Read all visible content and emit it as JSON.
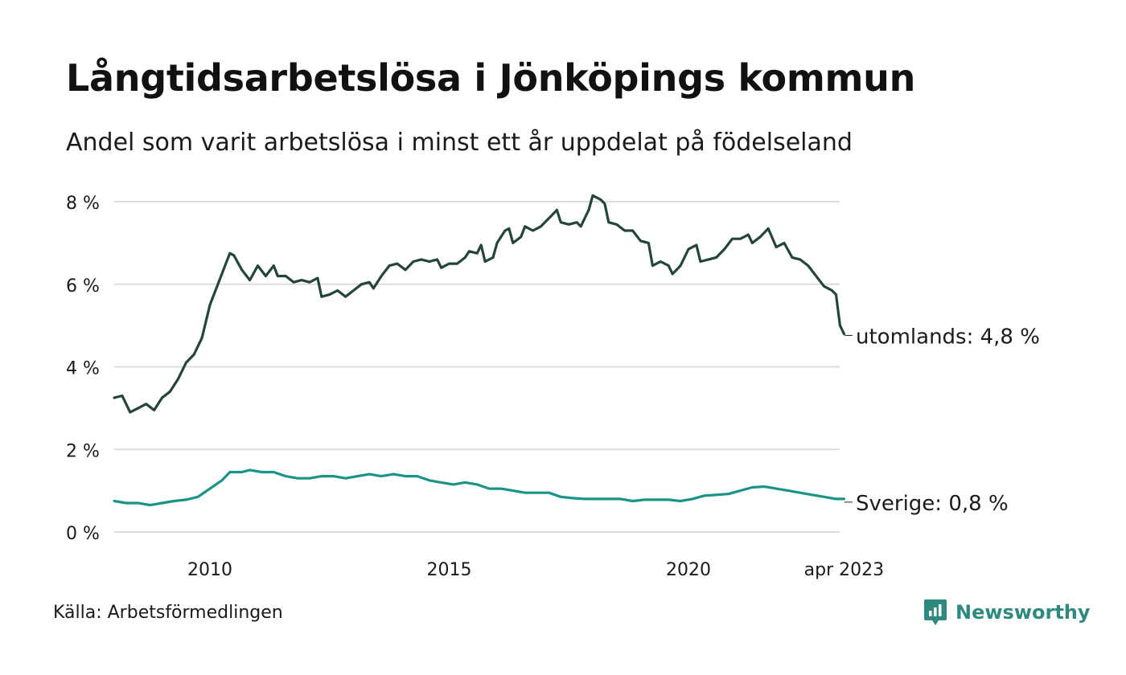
{
  "header": {
    "title": "Långtidsarbetslösa i Jönköpings kommun",
    "subtitle": "Andel som varit arbetslösa i minst ett år uppdelat på födelseland"
  },
  "footer": {
    "source": "Källa: Arbetsförmedlingen",
    "brand": "Newsworthy"
  },
  "colors": {
    "utomlands": "#24453d",
    "sverige": "#1a9486",
    "grid": "#dcdcdc",
    "brand": "#2e8a7e"
  },
  "chart_data": {
    "type": "line",
    "title": "Långtidsarbetslösa i Jönköpings kommun",
    "subtitle": "Andel som varit arbetslösa i minst ett år uppdelat på födelseland",
    "ylim": [
      0,
      8
    ],
    "y_ticks": [
      0,
      2,
      4,
      6,
      8
    ],
    "y_tick_labels": [
      "0 %",
      "2 %",
      "4 %",
      "6 %",
      "8 %"
    ],
    "x_ticks": [
      "2010",
      "2015",
      "2020",
      "apr 2023"
    ],
    "x_start": "2008-01",
    "x_end": "2023-04",
    "grid": true,
    "legend": "end-labels",
    "series": [
      {
        "name": "utomlands",
        "end_label": "utomlands: 4,8 %",
        "points": [
          [
            "2008-01",
            3.25
          ],
          [
            "2008-03",
            3.3
          ],
          [
            "2008-05",
            2.9
          ],
          [
            "2008-07",
            3.0
          ],
          [
            "2008-09",
            3.1
          ],
          [
            "2008-11",
            2.95
          ],
          [
            "2009-01",
            3.25
          ],
          [
            "2009-03",
            3.4
          ],
          [
            "2009-05",
            3.7
          ],
          [
            "2009-07",
            4.1
          ],
          [
            "2009-09",
            4.3
          ],
          [
            "2009-11",
            4.7
          ],
          [
            "2010-01",
            5.5
          ],
          [
            "2010-03",
            6.0
          ],
          [
            "2010-05",
            6.5
          ],
          [
            "2010-06",
            6.75
          ],
          [
            "2010-07",
            6.7
          ],
          [
            "2010-09",
            6.35
          ],
          [
            "2010-11",
            6.1
          ],
          [
            "2011-01",
            6.45
          ],
          [
            "2011-03",
            6.2
          ],
          [
            "2011-05",
            6.45
          ],
          [
            "2011-06",
            6.2
          ],
          [
            "2011-08",
            6.2
          ],
          [
            "2011-10",
            6.05
          ],
          [
            "2011-12",
            6.1
          ],
          [
            "2012-02",
            6.05
          ],
          [
            "2012-04",
            6.15
          ],
          [
            "2012-05",
            5.7
          ],
          [
            "2012-07",
            5.75
          ],
          [
            "2012-09",
            5.85
          ],
          [
            "2012-11",
            5.7
          ],
          [
            "2013-01",
            5.85
          ],
          [
            "2013-03",
            6.0
          ],
          [
            "2013-05",
            6.05
          ],
          [
            "2013-06",
            5.9
          ],
          [
            "2013-08",
            6.2
          ],
          [
            "2013-10",
            6.45
          ],
          [
            "2013-12",
            6.5
          ],
          [
            "2014-02",
            6.35
          ],
          [
            "2014-04",
            6.55
          ],
          [
            "2014-06",
            6.6
          ],
          [
            "2014-08",
            6.55
          ],
          [
            "2014-10",
            6.6
          ],
          [
            "2014-11",
            6.4
          ],
          [
            "2015-01",
            6.5
          ],
          [
            "2015-03",
            6.5
          ],
          [
            "2015-05",
            6.65
          ],
          [
            "2015-06",
            6.8
          ],
          [
            "2015-08",
            6.75
          ],
          [
            "2015-09",
            6.95
          ],
          [
            "2015-10",
            6.55
          ],
          [
            "2015-12",
            6.65
          ],
          [
            "2016-01",
            7.0
          ],
          [
            "2016-03",
            7.3
          ],
          [
            "2016-04",
            7.35
          ],
          [
            "2016-05",
            7.0
          ],
          [
            "2016-07",
            7.15
          ],
          [
            "2016-08",
            7.4
          ],
          [
            "2016-10",
            7.3
          ],
          [
            "2016-12",
            7.4
          ],
          [
            "2017-02",
            7.6
          ],
          [
            "2017-04",
            7.8
          ],
          [
            "2017-05",
            7.5
          ],
          [
            "2017-07",
            7.45
          ],
          [
            "2017-09",
            7.5
          ],
          [
            "2017-10",
            7.4
          ],
          [
            "2017-12",
            7.8
          ],
          [
            "2018-01",
            8.15
          ],
          [
            "2018-03",
            8.05
          ],
          [
            "2018-04",
            7.95
          ],
          [
            "2018-05",
            7.5
          ],
          [
            "2018-07",
            7.45
          ],
          [
            "2018-09",
            7.3
          ],
          [
            "2018-11",
            7.3
          ],
          [
            "2019-01",
            7.05
          ],
          [
            "2019-03",
            7.0
          ],
          [
            "2019-04",
            6.45
          ],
          [
            "2019-06",
            6.55
          ],
          [
            "2019-08",
            6.45
          ],
          [
            "2019-09",
            6.25
          ],
          [
            "2019-11",
            6.45
          ],
          [
            "2020-01",
            6.85
          ],
          [
            "2020-03",
            6.95
          ],
          [
            "2020-04",
            6.55
          ],
          [
            "2020-06",
            6.6
          ],
          [
            "2020-08",
            6.65
          ],
          [
            "2020-10",
            6.85
          ],
          [
            "2020-12",
            7.1
          ],
          [
            "2021-02",
            7.1
          ],
          [
            "2021-04",
            7.2
          ],
          [
            "2021-05",
            7.0
          ],
          [
            "2021-07",
            7.15
          ],
          [
            "2021-09",
            7.35
          ],
          [
            "2021-11",
            6.9
          ],
          [
            "2022-01",
            7.0
          ],
          [
            "2022-03",
            6.65
          ],
          [
            "2022-05",
            6.6
          ],
          [
            "2022-07",
            6.45
          ],
          [
            "2022-09",
            6.2
          ],
          [
            "2022-11",
            5.95
          ],
          [
            "2023-01",
            5.85
          ],
          [
            "2023-02",
            5.75
          ],
          [
            "2023-03",
            5.0
          ],
          [
            "2023-04",
            4.8
          ]
        ]
      },
      {
        "name": "Sverige",
        "end_label": "Sverige: 0,8 %",
        "points": [
          [
            "2008-01",
            0.75
          ],
          [
            "2008-04",
            0.7
          ],
          [
            "2008-07",
            0.7
          ],
          [
            "2008-10",
            0.65
          ],
          [
            "2009-01",
            0.7
          ],
          [
            "2009-04",
            0.75
          ],
          [
            "2009-07",
            0.78
          ],
          [
            "2009-10",
            0.85
          ],
          [
            "2010-01",
            1.05
          ],
          [
            "2010-04",
            1.25
          ],
          [
            "2010-06",
            1.45
          ],
          [
            "2010-09",
            1.45
          ],
          [
            "2010-11",
            1.5
          ],
          [
            "2011-02",
            1.45
          ],
          [
            "2011-05",
            1.45
          ],
          [
            "2011-08",
            1.35
          ],
          [
            "2011-11",
            1.3
          ],
          [
            "2012-02",
            1.3
          ],
          [
            "2012-05",
            1.35
          ],
          [
            "2012-08",
            1.35
          ],
          [
            "2012-11",
            1.3
          ],
          [
            "2013-02",
            1.35
          ],
          [
            "2013-05",
            1.4
          ],
          [
            "2013-08",
            1.35
          ],
          [
            "2013-11",
            1.4
          ],
          [
            "2014-02",
            1.35
          ],
          [
            "2014-05",
            1.35
          ],
          [
            "2014-08",
            1.25
          ],
          [
            "2014-11",
            1.2
          ],
          [
            "2015-02",
            1.15
          ],
          [
            "2015-05",
            1.2
          ],
          [
            "2015-08",
            1.15
          ],
          [
            "2015-11",
            1.05
          ],
          [
            "2016-02",
            1.05
          ],
          [
            "2016-05",
            1.0
          ],
          [
            "2016-08",
            0.95
          ],
          [
            "2016-11",
            0.95
          ],
          [
            "2017-02",
            0.95
          ],
          [
            "2017-05",
            0.85
          ],
          [
            "2017-08",
            0.82
          ],
          [
            "2017-11",
            0.8
          ],
          [
            "2018-02",
            0.8
          ],
          [
            "2018-05",
            0.8
          ],
          [
            "2018-08",
            0.8
          ],
          [
            "2018-11",
            0.75
          ],
          [
            "2019-02",
            0.78
          ],
          [
            "2019-05",
            0.78
          ],
          [
            "2019-08",
            0.78
          ],
          [
            "2019-11",
            0.75
          ],
          [
            "2020-02",
            0.8
          ],
          [
            "2020-05",
            0.88
          ],
          [
            "2020-08",
            0.9
          ],
          [
            "2020-11",
            0.92
          ],
          [
            "2021-02",
            1.0
          ],
          [
            "2021-05",
            1.08
          ],
          [
            "2021-08",
            1.1
          ],
          [
            "2021-11",
            1.05
          ],
          [
            "2022-02",
            1.0
          ],
          [
            "2022-05",
            0.95
          ],
          [
            "2022-08",
            0.9
          ],
          [
            "2022-11",
            0.85
          ],
          [
            "2023-02",
            0.8
          ],
          [
            "2023-04",
            0.8
          ]
        ]
      }
    ]
  }
}
